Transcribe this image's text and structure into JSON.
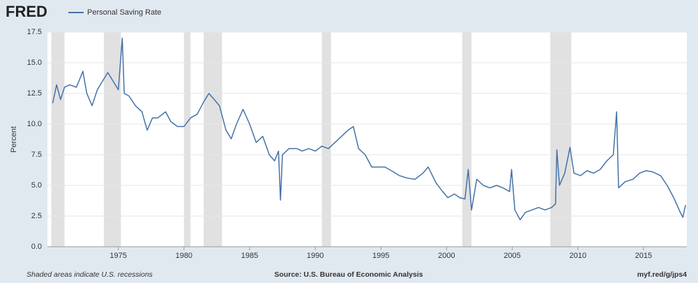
{
  "chart_data": {
    "type": "line",
    "logo": "FRED",
    "title": "Personal Saving Rate",
    "ylabel": "Percent",
    "footer_left": "Shaded areas indicate U.S. recessions",
    "source": "Source: U.S. Bureau of Economic Analysis",
    "link": "myf.red/g/jps4",
    "xlim": [
      1969.6,
      2018.3
    ],
    "xticks": [
      1975,
      1980,
      1985,
      1990,
      1995,
      2000,
      2005,
      2010,
      2015
    ],
    "ylim": [
      0,
      17.5
    ],
    "yticks": [
      {
        "value": 0,
        "label": "0.0"
      },
      2.5,
      {
        "value": 5,
        "label": "5.0"
      },
      7.5,
      {
        "value": 10,
        "label": "10.0"
      },
      12.5,
      {
        "value": 15,
        "label": "15.0"
      },
      17.5
    ],
    "grid": true,
    "recessions": [
      [
        1969.9,
        1970.9
      ],
      [
        1973.9,
        1975.2
      ],
      [
        1980.0,
        1980.5
      ],
      [
        1981.5,
        1982.9
      ],
      [
        1990.5,
        1991.2
      ],
      [
        2001.2,
        2001.9
      ],
      [
        2007.9,
        2009.5
      ]
    ],
    "recession_color": "#e1e1e1",
    "x": [
      1970.0,
      1970.3,
      1970.6,
      1970.9,
      1971.3,
      1971.8,
      1972.0,
      1972.3,
      1972.6,
      1973.0,
      1973.4,
      1973.8,
      1974.2,
      1974.6,
      1975.0,
      1975.3,
      1975.45,
      1975.8,
      1976.3,
      1976.8,
      1977.2,
      1977.6,
      1978.0,
      1978.6,
      1979.0,
      1979.5,
      1980.0,
      1980.5,
      1981.0,
      1981.5,
      1981.9,
      1982.3,
      1982.7,
      1983.2,
      1983.6,
      1984.0,
      1984.5,
      1985.0,
      1985.5,
      1986.0,
      1986.5,
      1986.9,
      1987.2,
      1987.35,
      1987.5,
      1988.0,
      1988.6,
      1989.0,
      1989.5,
      1990.0,
      1990.5,
      1991.0,
      1991.5,
      1992.0,
      1992.5,
      1992.9,
      1993.3,
      1993.8,
      1994.3,
      1994.8,
      1995.3,
      1995.8,
      1996.4,
      1997.0,
      1997.6,
      1998.2,
      1998.6,
      1999.2,
      1999.7,
      2000.1,
      2000.6,
      2001.0,
      2001.4,
      2001.65,
      2001.9,
      2002.3,
      2002.8,
      2003.3,
      2003.8,
      2004.3,
      2004.8,
      2004.95,
      2005.2,
      2005.6,
      2006.0,
      2006.5,
      2007.0,
      2007.5,
      2008.0,
      2008.3,
      2008.4,
      2008.6,
      2009.0,
      2009.4,
      2009.7,
      2010.2,
      2010.7,
      2011.2,
      2011.7,
      2012.2,
      2012.7,
      2012.95,
      2013.1,
      2013.6,
      2014.2,
      2014.7,
      2015.2,
      2015.7,
      2016.3,
      2016.8,
      2017.3,
      2017.8,
      2018.0,
      2018.2
    ],
    "series": [
      {
        "name": "Personal Saving Rate",
        "color": "#4572a7",
        "values": [
          11.7,
          13.2,
          12.0,
          13.0,
          13.2,
          13.0,
          13.5,
          14.3,
          12.5,
          11.5,
          12.8,
          13.5,
          14.2,
          13.5,
          12.8,
          17.0,
          12.5,
          12.3,
          11.5,
          11.0,
          9.5,
          10.5,
          10.5,
          11.0,
          10.2,
          9.8,
          9.8,
          10.5,
          10.8,
          11.8,
          12.5,
          12.0,
          11.5,
          9.5,
          8.8,
          10.0,
          11.2,
          10.0,
          8.5,
          9.0,
          7.5,
          7.0,
          7.8,
          3.8,
          7.5,
          8.0,
          8.0,
          7.8,
          8.0,
          7.8,
          8.2,
          8.0,
          8.5,
          9.0,
          9.5,
          9.8,
          8.0,
          7.5,
          6.5,
          6.5,
          6.5,
          6.2,
          5.8,
          5.6,
          5.5,
          6.0,
          6.5,
          5.2,
          4.5,
          4.0,
          4.3,
          4.0,
          3.9,
          6.3,
          3.0,
          5.5,
          5.0,
          4.8,
          5.0,
          4.8,
          4.5,
          6.3,
          3.0,
          2.2,
          2.8,
          3.0,
          3.2,
          3.0,
          3.2,
          3.5,
          7.9,
          5.0,
          6.0,
          8.1,
          6.0,
          5.8,
          6.2,
          6.0,
          6.3,
          7.0,
          7.5,
          11.0,
          4.8,
          5.3,
          5.5,
          6.0,
          6.2,
          6.1,
          5.8,
          5.0,
          4.0,
          2.8,
          2.4,
          3.4
        ]
      }
    ]
  }
}
